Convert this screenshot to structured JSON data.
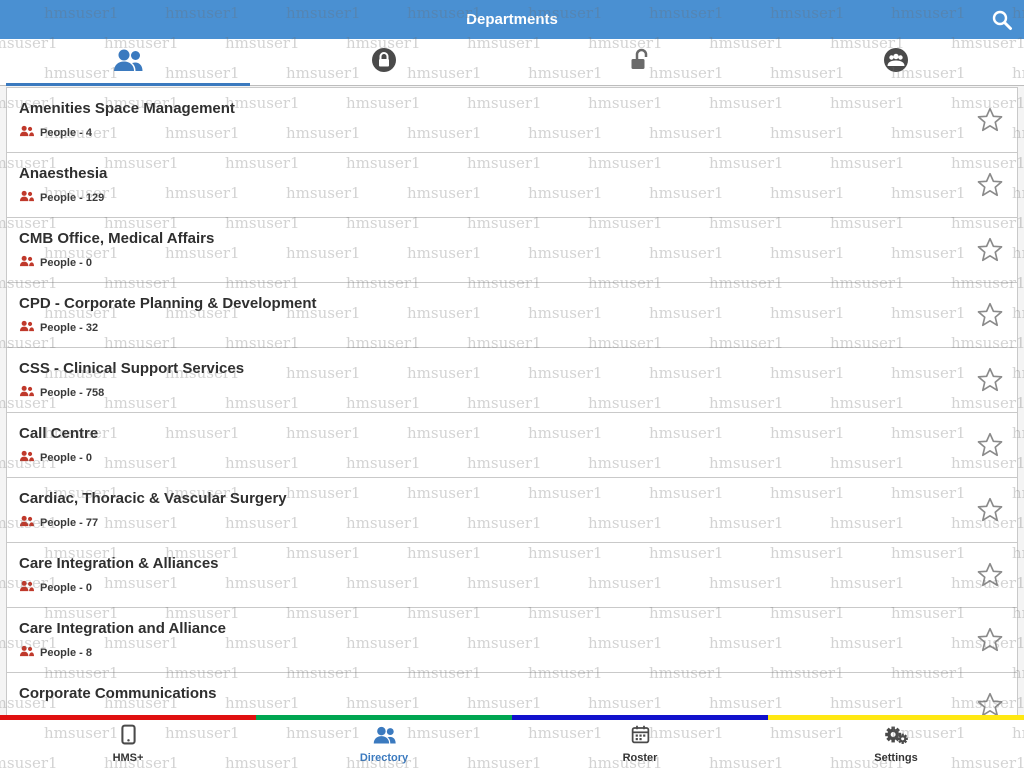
{
  "header": {
    "title": "Departments"
  },
  "watermark": {
    "text": "hmsuser1"
  },
  "colors": {
    "header_bg": "#4a90d2",
    "accent_blue": "#3b7abf",
    "people_red": "#c0392b",
    "stripe": [
      "#e01010",
      "#00a651",
      "#1111cc",
      "#ffe812"
    ]
  },
  "top_tabs": [
    {
      "name": "people",
      "active": true
    },
    {
      "name": "locked",
      "active": false
    },
    {
      "name": "unlocked",
      "active": false
    },
    {
      "name": "groups",
      "active": false
    }
  ],
  "departments": [
    {
      "name": "Amenities Space Management",
      "people": "People - 4"
    },
    {
      "name": "Anaesthesia",
      "people": "People - 129"
    },
    {
      "name": "CMB Office, Medical Affairs",
      "people": "People - 0"
    },
    {
      "name": "CPD - Corporate Planning & Development",
      "people": "People - 32"
    },
    {
      "name": "CSS - Clinical Support Services",
      "people": "People - 758"
    },
    {
      "name": "Call Centre",
      "people": "People - 0"
    },
    {
      "name": "Cardiac, Thoracic & Vascular Surgery",
      "people": "People - 77"
    },
    {
      "name": "Care Integration & Alliances",
      "people": "People - 0"
    },
    {
      "name": "Care Integration and Alliance",
      "people": "People - 8"
    },
    {
      "name": "Corporate Communications",
      "people": ""
    }
  ],
  "bottom_tabs": [
    {
      "label": "HMS+",
      "active": false
    },
    {
      "label": "Directory",
      "active": true
    },
    {
      "label": "Roster",
      "active": false
    },
    {
      "label": "Settings",
      "active": false
    }
  ]
}
